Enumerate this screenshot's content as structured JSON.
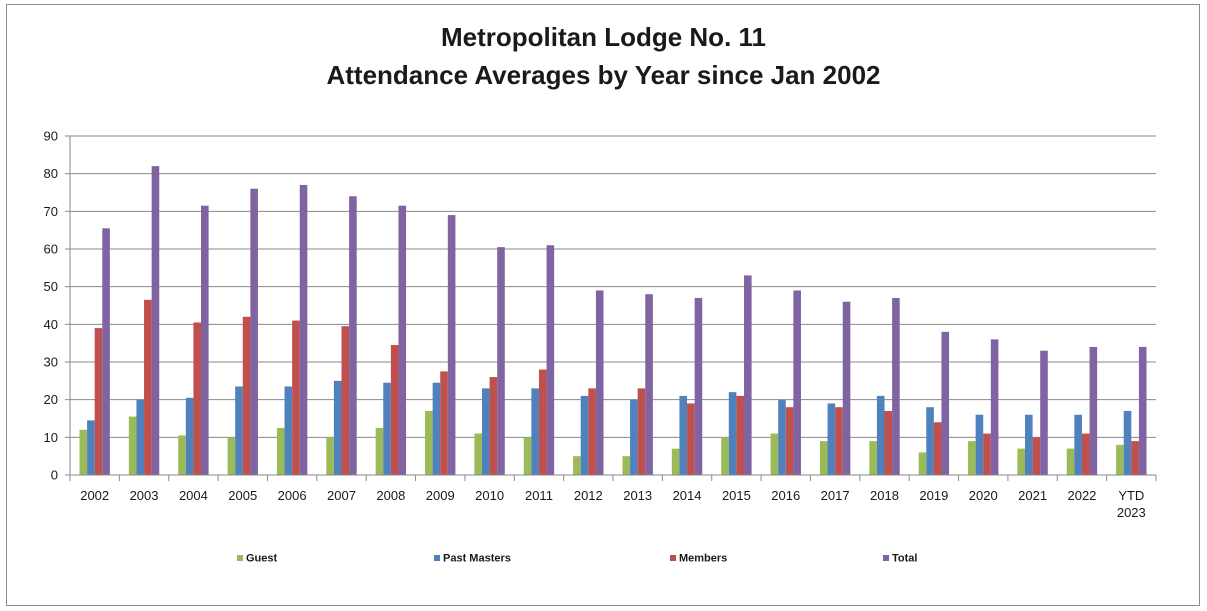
{
  "chart_data": {
    "type": "bar",
    "title": "Metropolitan Lodge No. 11",
    "subtitle": "Attendance Averages by Year since Jan 2002",
    "categories": [
      "2002",
      "2003",
      "2004",
      "2005",
      "2006",
      "2007",
      "2008",
      "2009",
      "2010",
      "2011",
      "2012",
      "2013",
      "2014",
      "2015",
      "2016",
      "2017",
      "2018",
      "2019",
      "2020",
      "2021",
      "2022",
      "YTD 2023"
    ],
    "ylim": [
      0,
      90
    ],
    "yticks": [
      0,
      10,
      20,
      30,
      40,
      50,
      60,
      70,
      80,
      90
    ],
    "grid": true,
    "legend_position": "bottom",
    "series": [
      {
        "name": "Guest",
        "color": "#9bbb59",
        "values": [
          12,
          15.5,
          10.5,
          10,
          12.5,
          10,
          12.5,
          17,
          11,
          10,
          5,
          5,
          7,
          10,
          11,
          9,
          9,
          6,
          9,
          7,
          7,
          8
        ]
      },
      {
        "name": "Past Masters",
        "color": "#4f81bd",
        "values": [
          14.5,
          20,
          20.5,
          23.5,
          23.5,
          25,
          24.5,
          24.5,
          23,
          23,
          21,
          20,
          21,
          22,
          20,
          19,
          21,
          18,
          16,
          16,
          16,
          17
        ]
      },
      {
        "name": "Members",
        "color": "#c0504d",
        "values": [
          39,
          46.5,
          40.5,
          42,
          41,
          39.5,
          34.5,
          27.5,
          26,
          28,
          23,
          23,
          19,
          21,
          18,
          18,
          17,
          14,
          11,
          10,
          11,
          9
        ]
      },
      {
        "name": "Total",
        "color": "#8064a2",
        "values": [
          65.5,
          82,
          71.5,
          76,
          77,
          74,
          71.5,
          69,
          60.5,
          61,
          49,
          48,
          47,
          53,
          49,
          46,
          47,
          38,
          36,
          33,
          34,
          34
        ]
      }
    ]
  }
}
